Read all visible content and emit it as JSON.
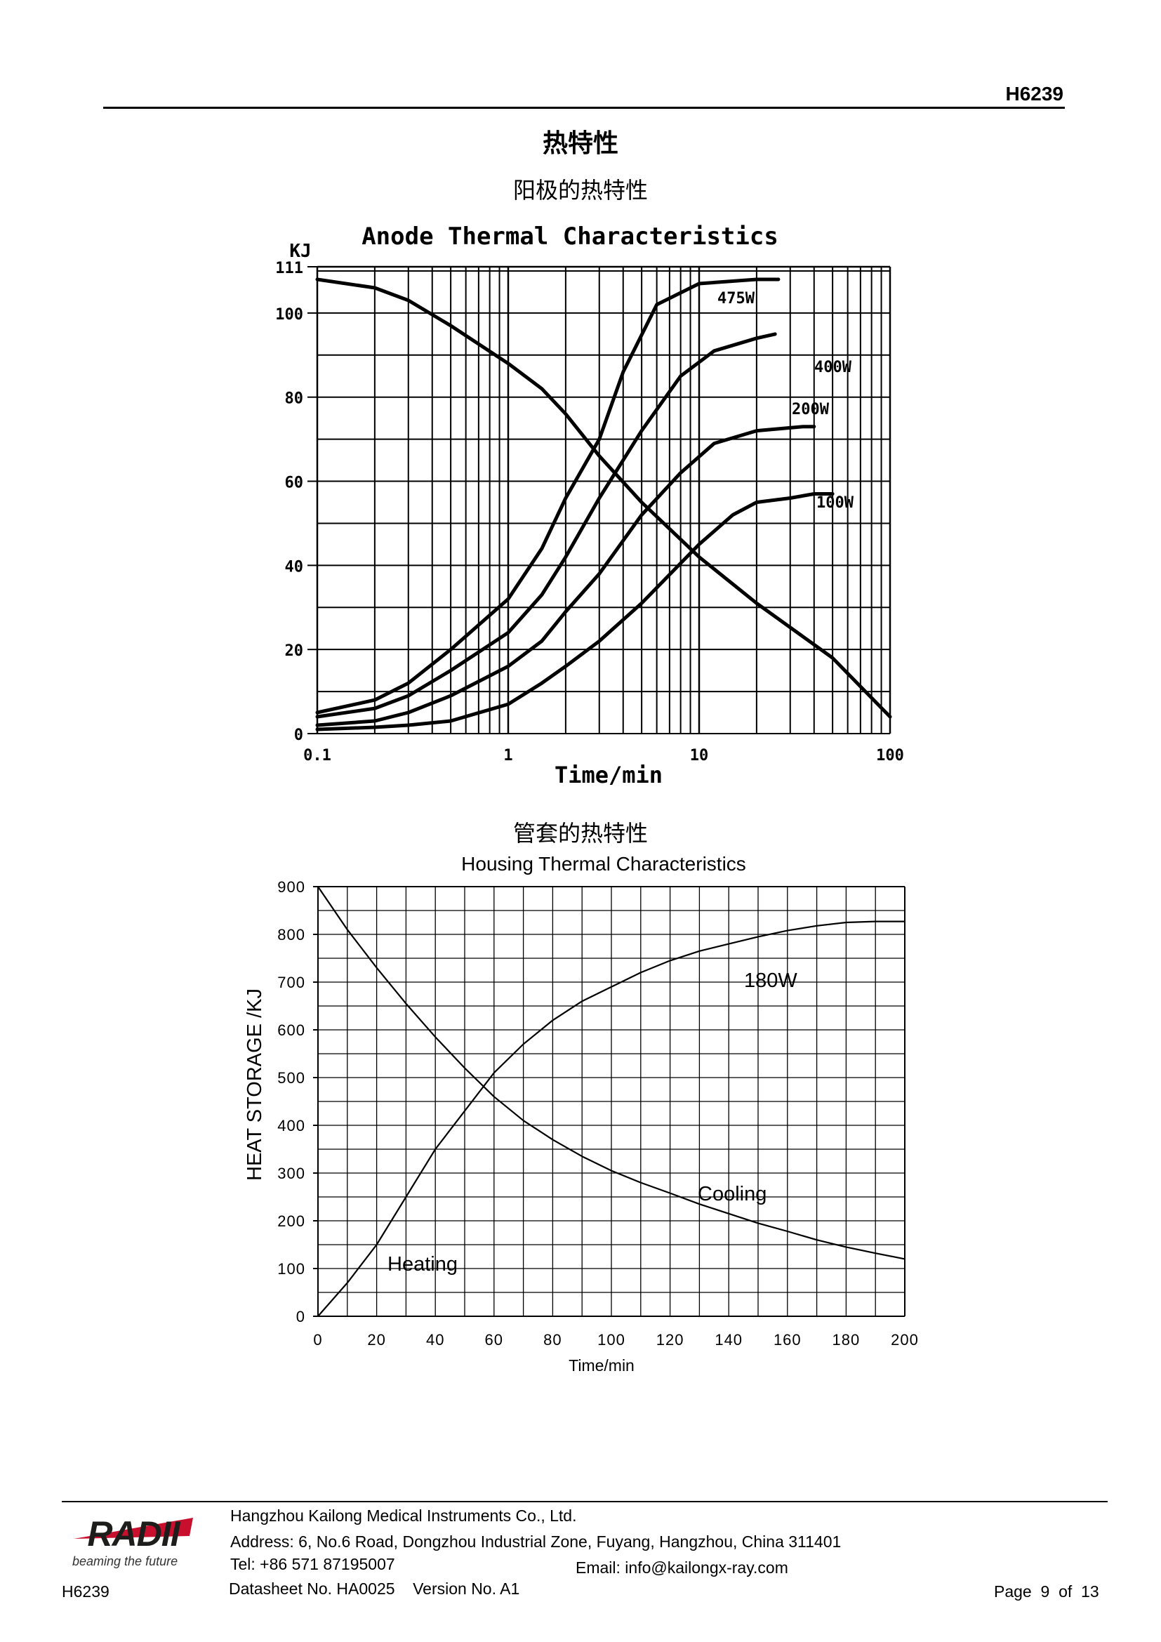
{
  "header": {
    "doc_code": "H6239"
  },
  "page_title": "热特性",
  "anode_section_title": "阳极的热特性",
  "housing_section_title": "管套的热特性",
  "anode_chart": {
    "type": "line",
    "title": "Anode Thermal Characteristics",
    "ylabel": "KJ",
    "xlabel": "Time/min",
    "x_scale": "log",
    "xlim": [
      0.1,
      100
    ],
    "ylim": [
      0,
      111
    ],
    "x_tick_labels": [
      {
        "v": 0.1,
        "label": "0.1"
      },
      {
        "v": 1,
        "label": "1"
      },
      {
        "v": 10,
        "label": "10"
      },
      {
        "v": 100,
        "label": "100"
      }
    ],
    "y_tick_labels": [
      {
        "v": 0,
        "label": "0"
      },
      {
        "v": 20,
        "label": "20"
      },
      {
        "v": 40,
        "label": "40"
      },
      {
        "v": 60,
        "label": "60"
      },
      {
        "v": 80,
        "label": "80"
      },
      {
        "v": 100,
        "label": "100"
      },
      {
        "v": 111,
        "label": "111"
      }
    ],
    "series": [
      {
        "name": "cooling",
        "label": "",
        "points": [
          [
            0.1,
            108
          ],
          [
            0.2,
            106
          ],
          [
            0.3,
            103
          ],
          [
            0.5,
            97
          ],
          [
            1,
            88
          ],
          [
            1.5,
            82
          ],
          [
            2,
            76
          ],
          [
            3,
            66
          ],
          [
            5,
            55
          ],
          [
            10,
            42
          ],
          [
            20,
            31
          ],
          [
            50,
            18
          ],
          [
            100,
            4
          ]
        ]
      },
      {
        "name": "475W",
        "label": "475W",
        "points": [
          [
            0.1,
            5
          ],
          [
            0.2,
            8
          ],
          [
            0.3,
            12
          ],
          [
            0.5,
            20
          ],
          [
            1,
            32
          ],
          [
            1.5,
            44
          ],
          [
            2,
            56
          ],
          [
            3,
            70
          ],
          [
            4,
            86
          ],
          [
            6,
            102
          ],
          [
            10,
            107
          ],
          [
            20,
            108
          ],
          [
            26,
            108
          ]
        ]
      },
      {
        "name": "400W",
        "label": "400W",
        "points": [
          [
            0.1,
            4
          ],
          [
            0.2,
            6
          ],
          [
            0.3,
            9
          ],
          [
            0.5,
            15
          ],
          [
            1,
            24
          ],
          [
            1.5,
            33
          ],
          [
            2,
            42
          ],
          [
            3,
            56
          ],
          [
            5,
            72
          ],
          [
            8,
            85
          ],
          [
            12,
            91
          ],
          [
            20,
            94
          ],
          [
            25,
            95
          ]
        ]
      },
      {
        "name": "200W",
        "label": "200W",
        "points": [
          [
            0.1,
            2
          ],
          [
            0.2,
            3
          ],
          [
            0.3,
            5
          ],
          [
            0.5,
            9
          ],
          [
            1,
            16
          ],
          [
            1.5,
            22
          ],
          [
            2,
            29
          ],
          [
            3,
            38
          ],
          [
            5,
            52
          ],
          [
            8,
            62
          ],
          [
            12,
            69
          ],
          [
            20,
            72
          ],
          [
            35,
            73
          ],
          [
            40,
            73
          ]
        ]
      },
      {
        "name": "100W",
        "label": "100W",
        "points": [
          [
            0.1,
            1
          ],
          [
            0.2,
            1.5
          ],
          [
            0.3,
            2
          ],
          [
            0.5,
            3
          ],
          [
            1,
            7
          ],
          [
            1.5,
            12
          ],
          [
            2,
            16
          ],
          [
            3,
            22
          ],
          [
            5,
            31
          ],
          [
            10,
            45
          ],
          [
            15,
            52
          ],
          [
            20,
            55
          ],
          [
            30,
            56
          ],
          [
            40,
            57
          ],
          [
            50,
            57
          ]
        ]
      }
    ]
  },
  "housing_chart": {
    "type": "line",
    "title": "Housing Thermal Characteristics",
    "ylabel": "HEAT STORAGE  /KJ",
    "xlabel": "Time/min",
    "xlim": [
      0,
      200
    ],
    "ylim": [
      0,
      900
    ],
    "x_ticks": [
      "0",
      "20",
      "40",
      "60",
      "80",
      "100",
      "120",
      "140",
      "160",
      "180",
      "200"
    ],
    "y_ticks": [
      "0",
      "100",
      "200",
      "300",
      "400",
      "500",
      "600",
      "700",
      "800",
      "900"
    ],
    "series": [
      {
        "name": "Heating",
        "label": "Heating",
        "points": [
          [
            0,
            0
          ],
          [
            10,
            70
          ],
          [
            20,
            150
          ],
          [
            30,
            250
          ],
          [
            40,
            350
          ],
          [
            50,
            430
          ],
          [
            60,
            510
          ],
          [
            70,
            570
          ],
          [
            80,
            620
          ],
          [
            90,
            660
          ],
          [
            100,
            690
          ],
          [
            110,
            720
          ],
          [
            120,
            745
          ],
          [
            130,
            765
          ],
          [
            140,
            780
          ],
          [
            150,
            795
          ],
          [
            160,
            808
          ],
          [
            170,
            818
          ],
          [
            180,
            825
          ],
          [
            190,
            827
          ],
          [
            200,
            827
          ]
        ]
      },
      {
        "name": "Cooling",
        "label": "Cooling",
        "points": [
          [
            0,
            900
          ],
          [
            10,
            810
          ],
          [
            20,
            730
          ],
          [
            30,
            655
          ],
          [
            40,
            585
          ],
          [
            50,
            520
          ],
          [
            60,
            460
          ],
          [
            70,
            410
          ],
          [
            80,
            370
          ],
          [
            90,
            335
          ],
          [
            100,
            305
          ],
          [
            110,
            280
          ],
          [
            120,
            258
          ],
          [
            130,
            235
          ],
          [
            140,
            215
          ],
          [
            150,
            195
          ],
          [
            160,
            178
          ],
          [
            170,
            160
          ],
          [
            180,
            145
          ],
          [
            190,
            132
          ],
          [
            200,
            120
          ]
        ]
      }
    ],
    "annotation": "180W"
  },
  "footer": {
    "logo_text": "RADII",
    "logo_tagline": "beaming the future",
    "company": "Hangzhou Kailong Medical Instruments Co., Ltd.",
    "address": "Address: 6, No.6 Road, Dongzhou Industrial Zone, Fuyang, Hangzhou, China 311401",
    "tel": "Tel: +86 571 87195007",
    "email": "Email: info@kailongx-ray.com",
    "doc_code": "H6239",
    "datasheet": "Datasheet No. HA0025    Version No. A1",
    "page": "Page  9  of  13"
  }
}
